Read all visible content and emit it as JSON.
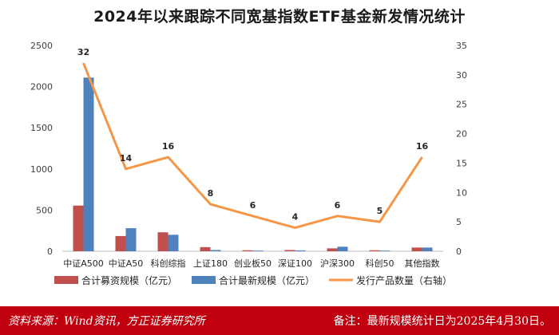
{
  "chart_data": {
    "type": "bar",
    "title": "2024年以来跟踪不同宽基指数ETF基金新发情况统计",
    "categories": [
      "中证A500",
      "中证A50",
      "科创综指",
      "上证180",
      "创业板50",
      "深证100",
      "沪深300",
      "科创50",
      "其他指数"
    ],
    "series": [
      {
        "name": "合计募资规模（亿元）",
        "type": "bar",
        "axis": "left",
        "color": "#c0504d",
        "values": [
          555,
          185,
          230,
          50,
          12,
          15,
          35,
          12,
          45
        ]
      },
      {
        "name": "合计最新规模（亿元）",
        "type": "bar",
        "axis": "left",
        "color": "#4f81bd",
        "values": [
          2110,
          280,
          200,
          15,
          8,
          10,
          55,
          8,
          45
        ]
      },
      {
        "name": "发行产品数量（右轴）",
        "type": "line",
        "axis": "right",
        "color": "#f79646",
        "values": [
          32,
          14,
          16,
          8,
          6,
          4,
          6,
          5,
          16
        ]
      }
    ],
    "y_left": {
      "min": 0,
      "max": 2500,
      "ticks": [
        0,
        500,
        1000,
        1500,
        2000,
        2500
      ]
    },
    "y_right": {
      "min": 0,
      "max": 35,
      "ticks": [
        0,
        5,
        10,
        15,
        20,
        25,
        30,
        35
      ]
    },
    "grid": false,
    "legend_position": "bottom"
  },
  "footer": {
    "source": "资料来源：Wind资讯，方正证券研究所",
    "note": "备注：最新规模统计日为2025年4月30日。",
    "background": "#c0000e"
  }
}
